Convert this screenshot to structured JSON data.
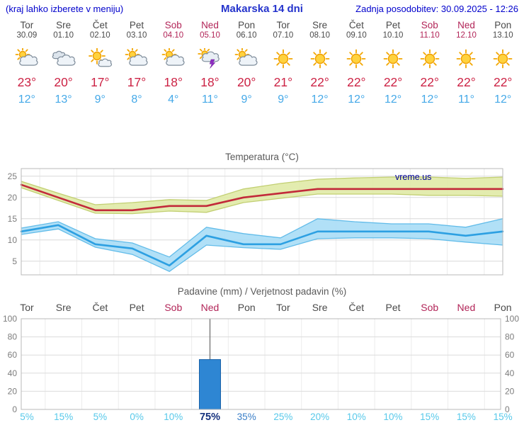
{
  "header": {
    "left_note": "(kraj lahko izberete v meniju)",
    "title": "Makarska 14 dni",
    "updated": "Zadnja posodobitev: 30.09.2025 - 12:26"
  },
  "days": [
    {
      "name": "Tor",
      "date": "30.09",
      "weekend": false,
      "icon": "partly-cloudy",
      "high": "23°",
      "low": "12°"
    },
    {
      "name": "Sre",
      "date": "01.10",
      "weekend": false,
      "icon": "cloudy",
      "high": "20°",
      "low": "13°"
    },
    {
      "name": "Čet",
      "date": "02.10",
      "weekend": false,
      "icon": "mostly-sunny",
      "high": "17°",
      "low": "9°"
    },
    {
      "name": "Pet",
      "date": "03.10",
      "weekend": false,
      "icon": "partly-cloudy",
      "high": "17°",
      "low": "8°"
    },
    {
      "name": "Sob",
      "date": "04.10",
      "weekend": true,
      "icon": "partly-cloudy",
      "high": "18°",
      "low": "4°"
    },
    {
      "name": "Ned",
      "date": "05.10",
      "weekend": true,
      "icon": "thunderstorm",
      "high": "18°",
      "low": "11°"
    },
    {
      "name": "Pon",
      "date": "06.10",
      "weekend": false,
      "icon": "partly-cloudy",
      "high": "20°",
      "low": "9°"
    },
    {
      "name": "Tor",
      "date": "07.10",
      "weekend": false,
      "icon": "sunny",
      "high": "21°",
      "low": "9°"
    },
    {
      "name": "Sre",
      "date": "08.10",
      "weekend": false,
      "icon": "sunny",
      "high": "22°",
      "low": "12°"
    },
    {
      "name": "Čet",
      "date": "09.10",
      "weekend": false,
      "icon": "sunny",
      "high": "22°",
      "low": "12°"
    },
    {
      "name": "Pet",
      "date": "10.10",
      "weekend": false,
      "icon": "sunny",
      "high": "22°",
      "low": "12°"
    },
    {
      "name": "Sob",
      "date": "11.10",
      "weekend": true,
      "icon": "sunny",
      "high": "22°",
      "low": "12°"
    },
    {
      "name": "Ned",
      "date": "12.10",
      "weekend": true,
      "icon": "sunny",
      "high": "22°",
      "low": "11°"
    },
    {
      "name": "Pon",
      "date": "13.10",
      "weekend": false,
      "icon": "sunny",
      "high": "22°",
      "low": "12°"
    }
  ],
  "chart_data": [
    {
      "type": "line",
      "title": "Temperatura (°C)",
      "watermark": "vreme.us",
      "watermark_color": "#000099",
      "x_labels": [
        "Tor 30.09",
        "Sre 01.10",
        "Čet 02.10",
        "Pet 03.10",
        "Sob 04.10",
        "Ned 05.10",
        "Pon 06.10",
        "Tor 07.10",
        "Sre 08.10",
        "Čet 09.10",
        "Pet 10.10",
        "Sob 11.10",
        "Ned 12.10",
        "Pon 13.10"
      ],
      "ylim": [
        1.8,
        26.8
      ],
      "yticks": [
        5,
        10,
        15,
        20,
        25
      ],
      "grid": true,
      "legend": "none",
      "series": [
        {
          "name": "max-temperature",
          "color": "#c22a3a",
          "values": [
            23,
            20,
            17,
            17,
            18,
            18,
            20,
            21,
            22,
            22,
            22,
            22,
            22,
            22
          ]
        },
        {
          "name": "min-temperature",
          "color": "#2da0e2",
          "values": [
            12,
            13.5,
            9,
            8,
            4,
            11,
            9,
            9,
            12,
            12,
            12,
            12,
            11,
            12
          ]
        }
      ],
      "bands": [
        {
          "name": "max-temperature-range",
          "fill": "#e0eaa6",
          "edge": "#c2cf72",
          "upper": [
            23.8,
            21,
            18.3,
            18.8,
            19.5,
            19.3,
            22,
            23.3,
            24.3,
            24.6,
            24.8,
            24.8,
            24.5,
            24.8
          ],
          "lower": [
            22.3,
            19.3,
            16.3,
            16.2,
            16.8,
            16.5,
            18.8,
            19.8,
            20.8,
            20.8,
            20.8,
            20.5,
            20.5,
            20.3
          ]
        },
        {
          "name": "min-temperature-range",
          "fill": "#a9ddf6",
          "edge": "#62bce9",
          "upper": [
            12.8,
            14.3,
            10.3,
            9.3,
            6,
            13,
            11.5,
            10.5,
            15,
            14.3,
            13.8,
            13.8,
            13,
            15
          ],
          "lower": [
            11.3,
            12.6,
            8.3,
            6.6,
            2.6,
            8.8,
            8.2,
            7.8,
            10.3,
            10.5,
            10.5,
            10.3,
            9.5,
            8.8
          ]
        }
      ]
    },
    {
      "type": "bar",
      "title": "Padavine (mm) / Verjetnost padavin (%)",
      "categories": [
        "Tor",
        "Sre",
        "Čet",
        "Pet",
        "Sob",
        "Ned",
        "Pon",
        "Tor",
        "Sre",
        "Čet",
        "Pet",
        "Sob",
        "Ned",
        "Pon"
      ],
      "weekend_indices": [
        4,
        5,
        11,
        12
      ],
      "values": [
        0,
        0,
        0,
        0,
        0,
        55,
        0,
        0,
        0,
        0,
        0,
        0,
        0,
        0
      ],
      "bar_color": "#2e86d3",
      "bar_edge_color": "#1a62a8",
      "whiskers": [
        {
          "index": 5,
          "max": 100
        }
      ],
      "probability_pct": [
        5,
        15,
        5,
        0,
        10,
        75,
        35,
        25,
        20,
        10,
        10,
        15,
        15,
        15
      ],
      "probability_labels": [
        "5%",
        "15%",
        "5%",
        "0%",
        "10%",
        "75%",
        "35%",
        "25%",
        "20%",
        "10%",
        "10%",
        "15%",
        "15%",
        "15%"
      ],
      "probability_colors": {
        "low": "#58c9ea",
        "mid": "#3a7fc8",
        "high": "#15317e"
      },
      "ylim": [
        0,
        100
      ],
      "yticks": [
        0,
        20,
        40,
        60,
        80,
        100
      ],
      "grid": true
    }
  ]
}
